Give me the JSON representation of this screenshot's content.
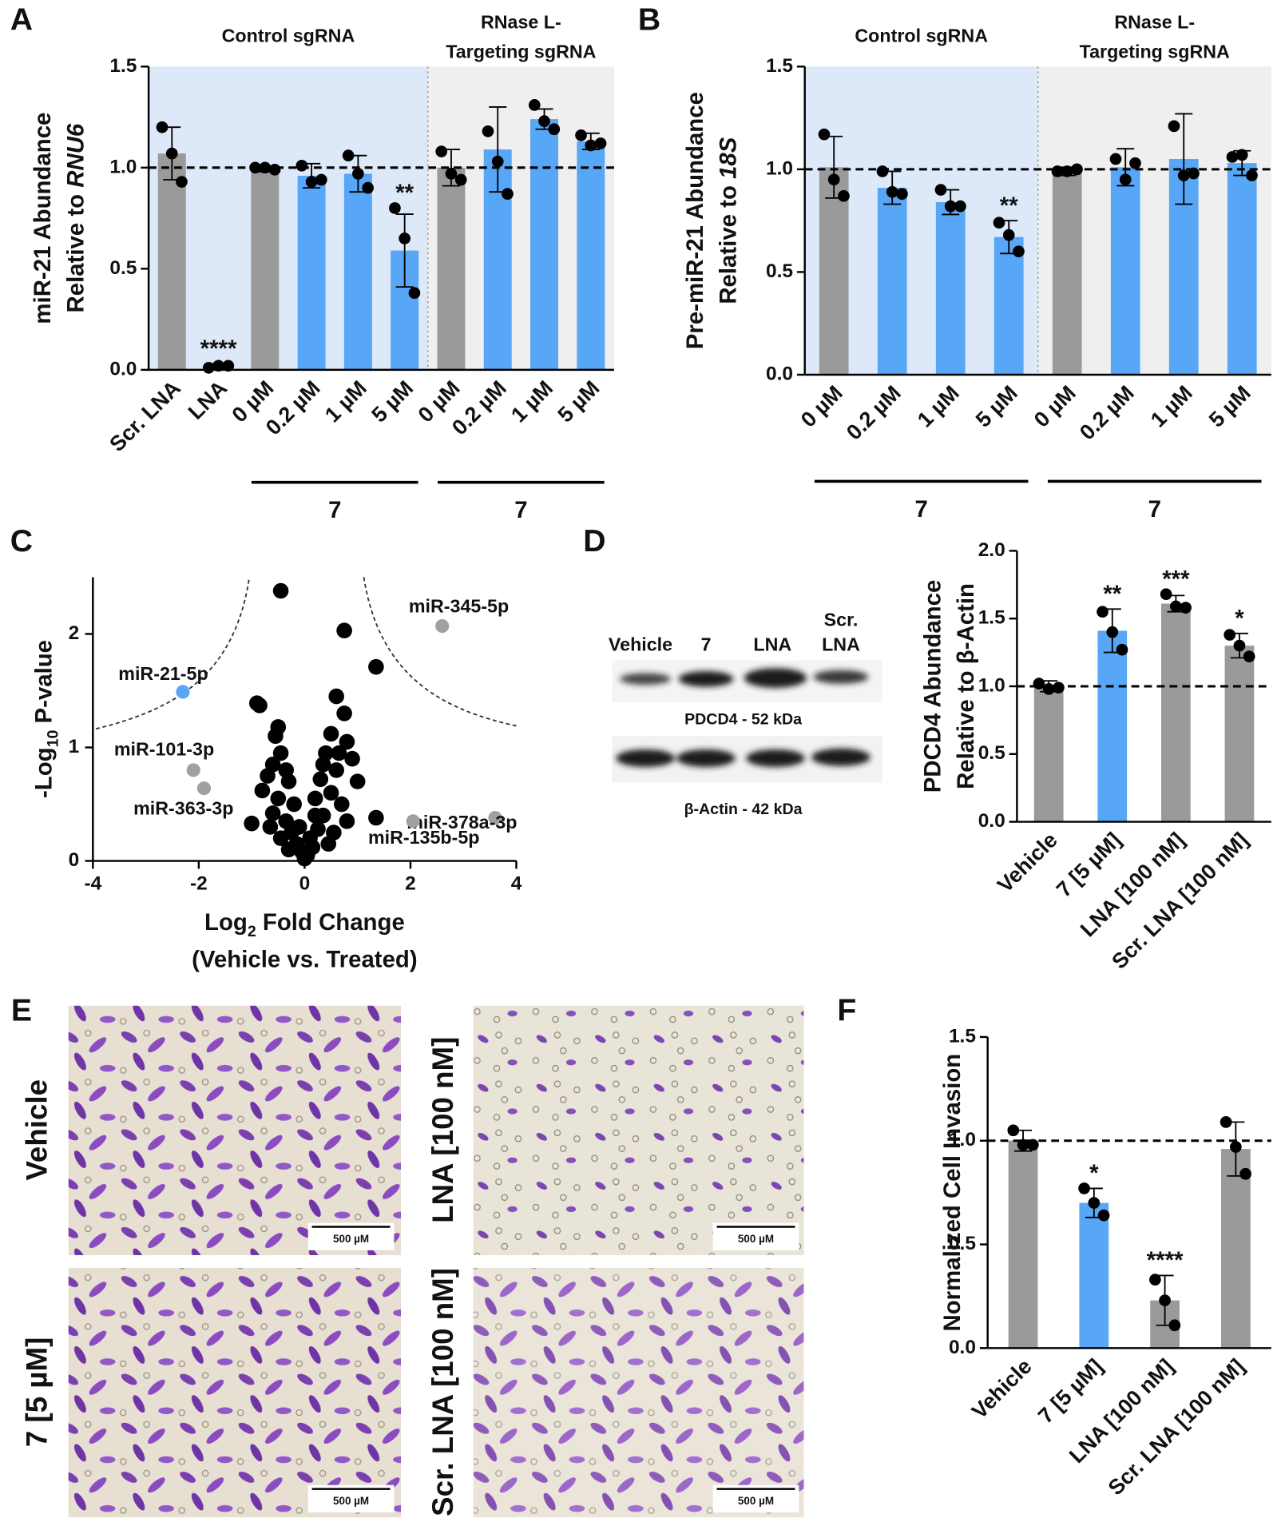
{
  "panels": [
    "A",
    "B",
    "C",
    "D",
    "E",
    "F"
  ],
  "chart_data": [
    {
      "type": "bar",
      "categories": [
        "Scr. LNA",
        "LNA",
        "0 µM",
        "0.2 µM",
        "1 µM",
        "5 µM",
        "0 µM",
        "0.2 µM",
        "1 µM",
        "5 µM"
      ],
      "values": [
        1.07,
        0.02,
        0.99,
        0.96,
        0.97,
        0.59,
        1.0,
        1.09,
        1.24,
        1.13
      ],
      "errors": [
        0.13,
        0.01,
        0.01,
        0.06,
        0.09,
        0.18,
        0.09,
        0.21,
        0.05,
        0.04
      ],
      "points": [
        [
          1.2,
          1.07,
          0.93
        ],
        [
          0.01,
          0.02,
          0.02
        ],
        [
          1.0,
          1.0,
          0.99
        ],
        [
          1.01,
          0.93,
          0.94
        ],
        [
          1.06,
          0.97,
          0.9
        ],
        [
          0.8,
          0.65,
          0.38
        ],
        [
          1.08,
          0.97,
          0.94
        ],
        [
          1.18,
          1.03,
          0.87
        ],
        [
          1.31,
          1.23,
          1.19
        ],
        [
          1.16,
          1.11,
          1.12
        ]
      ],
      "colors": [
        "#9a9a9a",
        "#9a9a9a",
        "#9a9a9a",
        "#58a6f6",
        "#58a6f6",
        "#58a6f6",
        "#9a9a9a",
        "#58a6f6",
        "#58a6f6",
        "#58a6f6"
      ],
      "annotations": [
        null,
        "****",
        null,
        null,
        null,
        "**",
        null,
        null,
        null,
        null
      ],
      "groups": [
        {
          "label": [
            "Control sgRNA"
          ],
          "size": 6,
          "background": "#dde9f8",
          "treatment": "7",
          "treatment_size": 4
        },
        {
          "label": [
            "RNase L-",
            "Targeting sgRNA"
          ],
          "size": 4,
          "background": "#efefef",
          "treatment": "7",
          "treatment_size": 4
        }
      ],
      "reference_line": 1,
      "ylim": [
        0,
        1.5
      ],
      "yticks": [
        {
          "value": 0,
          "label": "0.0"
        },
        {
          "value": 0.5,
          "label": "0.5"
        },
        {
          "value": 1,
          "label": "1.0"
        },
        {
          "value": 1.5,
          "label": "1.5"
        }
      ],
      "ylabel": [
        [
          "miR-21 Abundance"
        ],
        [
          "Relative to ",
          "RNU6"
        ]
      ],
      "label_style": "italic-last"
    },
    {
      "type": "bar",
      "categories": [
        "0 µM",
        "0.2 µM",
        "1 µM",
        "5 µM",
        "0 µM",
        "0.2 µM",
        "1 µM",
        "5 µM"
      ],
      "values": [
        1.01,
        0.91,
        0.84,
        0.67,
        0.99,
        1.01,
        1.05,
        1.03
      ],
      "errors": [
        0.15,
        0.08,
        0.06,
        0.08,
        0.02,
        0.09,
        0.22,
        0.06
      ],
      "points": [
        [
          1.17,
          0.95,
          0.87
        ],
        [
          0.99,
          0.89,
          0.88
        ],
        [
          0.9,
          0.82,
          0.82
        ],
        [
          0.74,
          0.68,
          0.6
        ],
        [
          0.99,
          0.99,
          1.0
        ],
        [
          1.05,
          0.95,
          1.03
        ],
        [
          1.21,
          0.97,
          0.98
        ],
        [
          1.06,
          1.07,
          0.97
        ]
      ],
      "colors": [
        "#9a9a9a",
        "#58a6f6",
        "#58a6f6",
        "#58a6f6",
        "#9a9a9a",
        "#58a6f6",
        "#58a6f6",
        "#58a6f6"
      ],
      "annotations": [
        null,
        null,
        null,
        "**",
        null,
        null,
        null,
        null
      ],
      "groups": [
        {
          "label": [
            "Control sgRNA"
          ],
          "size": 4,
          "background": "#dde9f8",
          "treatment": "7",
          "treatment_size": 4
        },
        {
          "label": [
            "RNase L-",
            "Targeting sgRNA"
          ],
          "size": 4,
          "background": "#efefef",
          "treatment": "7",
          "treatment_size": 4
        }
      ],
      "reference_line": 1,
      "ylim": [
        0,
        1.5
      ],
      "yticks": [
        {
          "value": 0,
          "label": "0.0"
        },
        {
          "value": 0.5,
          "label": "0.5"
        },
        {
          "value": 1,
          "label": "1.0"
        },
        {
          "value": 1.5,
          "label": "1.5"
        }
      ],
      "ylabel": [
        [
          "Pre-miR-21 Abundance"
        ],
        [
          "Relative to ",
          "18S"
        ]
      ],
      "label_style": "italic-last"
    },
    {
      "type": "scatter",
      "x": [
        -0.45,
        0.75,
        1.35,
        -0.9,
        -0.85,
        0.6,
        0.75,
        -0.5,
        -0.55,
        0.5,
        0.8,
        -0.45,
        -0.6,
        0.4,
        0.9,
        -0.7,
        0.6,
        1.0,
        -0.8,
        -0.3,
        0.3,
        0.5,
        -0.5,
        -0.2,
        0.2,
        0.7,
        -1.0,
        1.35,
        -0.6,
        -0.35,
        0.35,
        0.8,
        -0.25,
        0.25,
        0.55,
        -0.45,
        0.1,
        -0.15,
        0.15,
        -0.05,
        0.05,
        0.0,
        -0.1,
        0.45,
        -0.3,
        0.2,
        -0.65,
        0.65,
        0.35,
        -0.35
      ],
      "y": [
        2.38,
        2.03,
        1.71,
        1.39,
        1.37,
        1.45,
        1.3,
        1.18,
        1.1,
        1.12,
        1.05,
        0.95,
        0.85,
        0.95,
        0.9,
        0.75,
        0.8,
        0.7,
        0.62,
        0.7,
        0.72,
        0.6,
        0.55,
        0.5,
        0.55,
        0.5,
        0.33,
        0.38,
        0.42,
        0.35,
        0.4,
        0.35,
        0.25,
        0.28,
        0.25,
        0.2,
        0.2,
        0.15,
        0.12,
        0.08,
        0.05,
        0.02,
        0.3,
        0.15,
        0.1,
        0.4,
        0.3,
        0.95,
        0.85,
        0.8
      ],
      "color": "#000000",
      "highlighted": [
        {
          "label": "miR-21-5p",
          "x": -2.3,
          "y": 1.49,
          "color": "#58a6f6"
        },
        {
          "label": "miR-101-3p",
          "x": -2.1,
          "y": 0.8,
          "color": "#a0a0a0"
        },
        {
          "label": "miR-363-3p",
          "x": -1.9,
          "y": 0.64,
          "color": "#a0a0a0"
        },
        {
          "label": "miR-345-5p",
          "x": 2.6,
          "y": 2.07,
          "color": "#a0a0a0"
        },
        {
          "label": "miR-378a-3p",
          "x": 3.6,
          "y": 0.38,
          "color": "#a0a0a0"
        },
        {
          "label": "miR-135b-5p",
          "x": 2.05,
          "y": 0.35,
          "color": "#a0a0a0"
        }
      ],
      "xlim": [
        -4,
        4
      ],
      "xticks": [
        -4,
        -2,
        0,
        2,
        4
      ],
      "ylim": [
        0,
        2.5
      ],
      "yticks": [
        0,
        1,
        2
      ],
      "xlabel": [
        [
          "Log",
          "2",
          " Fold Change"
        ],
        [
          "(Vehicle vs. Treated)"
        ]
      ],
      "ylabel": [
        [
          "-Log",
          "10",
          " P-value"
        ]
      ],
      "label_style": "subscript-middle"
    },
    {
      "type": "bar",
      "categories": [
        "Vehicle",
        "7 [5 µM]",
        "LNA [100 nM]",
        "Scr. LNA [100 nM]"
      ],
      "values": [
        1.0,
        1.41,
        1.61,
        1.3
      ],
      "errors": [
        0.04,
        0.16,
        0.06,
        0.09
      ],
      "points": [
        [
          1.02,
          0.98,
          0.99
        ],
        [
          1.55,
          1.4,
          1.27
        ],
        [
          1.68,
          1.59,
          1.58
        ],
        [
          1.38,
          1.3,
          1.22
        ]
      ],
      "colors": [
        "#9a9a9a",
        "#58a6f6",
        "#9a9a9a",
        "#9a9a9a"
      ],
      "annotations": [
        null,
        "**",
        "***",
        "*"
      ],
      "reference_line": 1,
      "ylim": [
        0,
        2
      ],
      "yticks": [
        {
          "value": 0,
          "label": "0.0"
        },
        {
          "value": 0.5,
          "label": "0.5"
        },
        {
          "value": 1,
          "label": "1.0"
        },
        {
          "value": 1.5,
          "label": "1.5"
        },
        {
          "value": 2,
          "label": "2.0"
        }
      ],
      "ylabel": [
        [
          "PDCD4 Abundance"
        ],
        [
          "Relative to β-Actin"
        ]
      ]
    },
    {
      "type": "bar",
      "categories": [
        "Vehicle",
        "7 [5 µM]",
        "LNA [100 nM]",
        "Scr. LNA [100 nM]"
      ],
      "values": [
        1.0,
        0.7,
        0.23,
        0.96
      ],
      "errors": [
        0.05,
        0.07,
        0.12,
        0.13
      ],
      "points": [
        [
          1.05,
          0.98,
          0.98
        ],
        [
          0.77,
          0.7,
          0.64
        ],
        [
          0.33,
          0.23,
          0.11
        ],
        [
          1.09,
          0.97,
          0.84
        ]
      ],
      "colors": [
        "#9a9a9a",
        "#58a6f6",
        "#9a9a9a",
        "#9a9a9a"
      ],
      "annotations": [
        null,
        "*",
        "****",
        null
      ],
      "reference_line": 1,
      "ylim": [
        0,
        1.5
      ],
      "yticks": [
        {
          "value": 0,
          "label": "0.0"
        },
        {
          "value": 0.5,
          "label": "0.5"
        },
        {
          "value": 1,
          "label": "1.0"
        },
        {
          "value": 1.5,
          "label": "1.5"
        }
      ],
      "ylabel": [
        [
          "Normalized Cell Invasion"
        ]
      ]
    }
  ],
  "blot": {
    "lanes": [
      [
        "Vehicle"
      ],
      [
        "7"
      ],
      [
        "LNA"
      ],
      [
        "Scr.",
        "LNA"
      ]
    ],
    "captions": [
      "PDCD4 - 52 kDa",
      "β-Actin - 42 kDa"
    ]
  },
  "micrographs": {
    "labels": [
      "Vehicle",
      "LNA [100 nM]",
      "7 [5 µM]",
      "Scr. LNA [100 nM]"
    ],
    "scale_bar": "500 µM"
  }
}
